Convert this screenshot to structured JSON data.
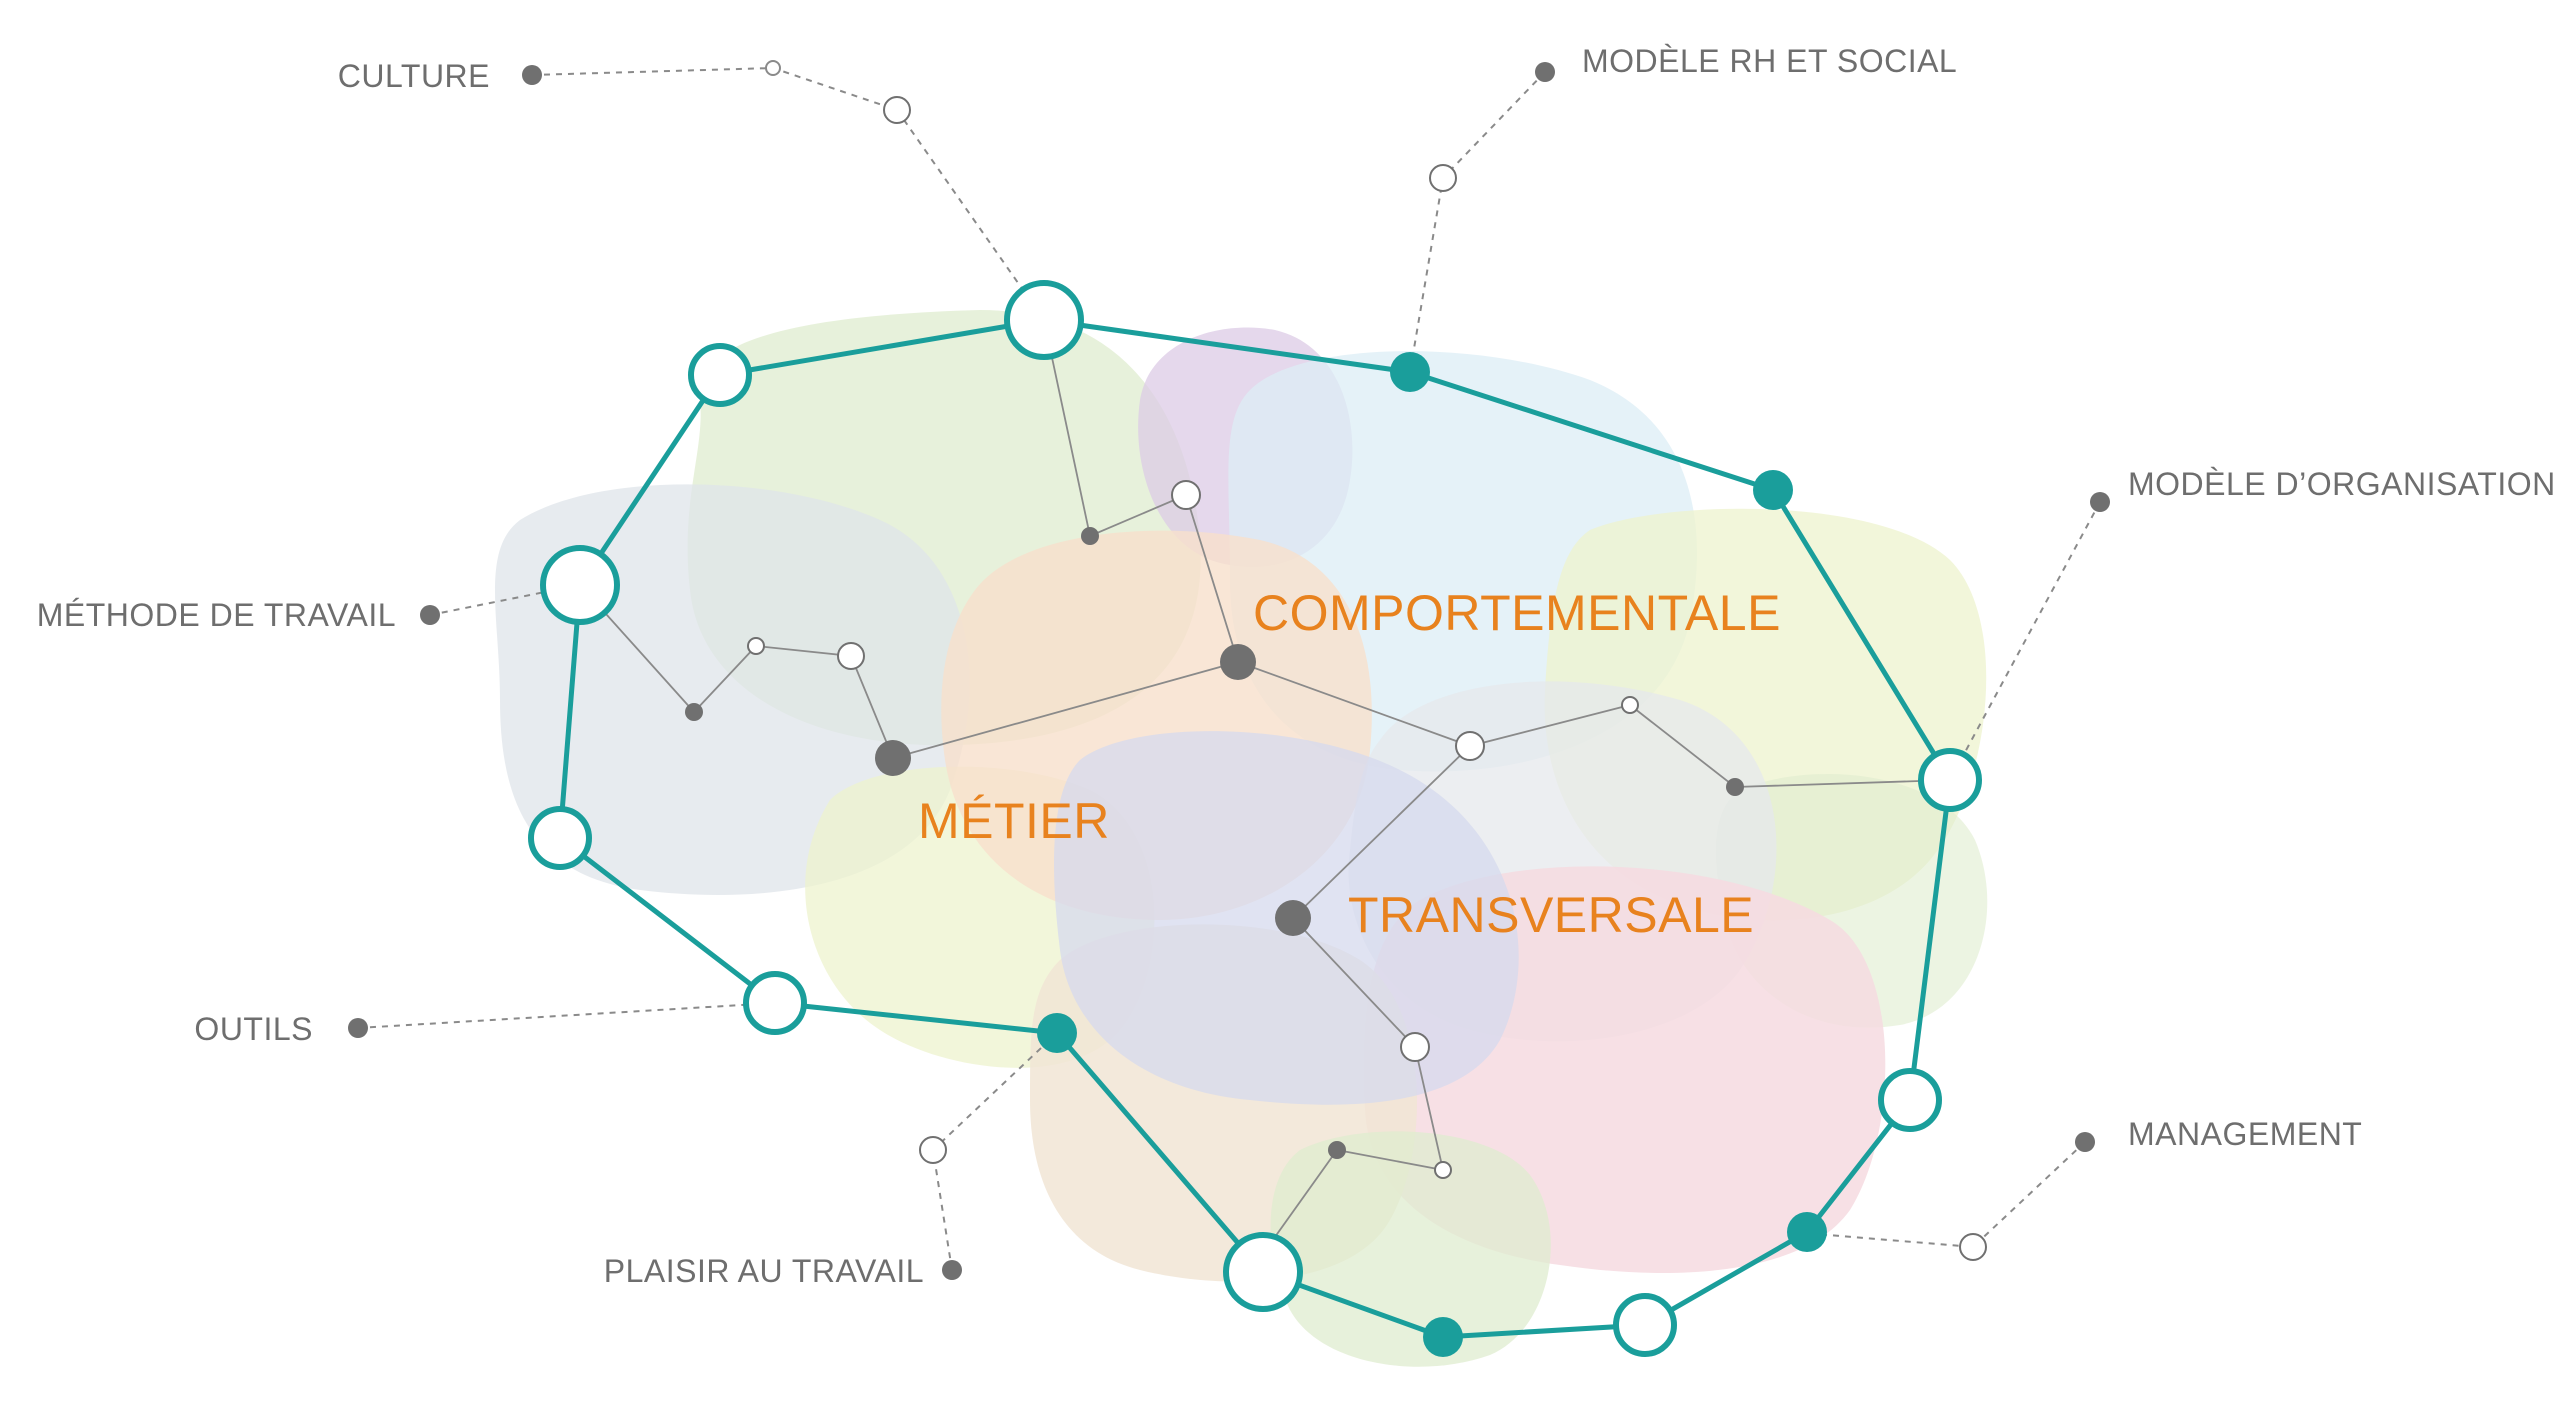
{
  "colors": {
    "teal": "#1a9e9b",
    "grey_dot": "#707070",
    "label_grey": "#6e6e6e",
    "accent_orange": "#e8821e"
  },
  "outer_labels": {
    "culture": "CULTURE",
    "modele_rh": "MODÈLE RH ET SOCIAL",
    "methode": "MÉTHODE DE TRAVAIL",
    "modele_org": "MODÈLE D’ORGANISATION",
    "outils": "OUTILS",
    "management": "MANAGEMENT",
    "plaisir": "PLAISIR AU TRAVAIL"
  },
  "inner_labels": {
    "comportementale": "COMPORTEMENTALE",
    "metier": "MÉTIER",
    "transversale": "TRANSVERSALE"
  }
}
